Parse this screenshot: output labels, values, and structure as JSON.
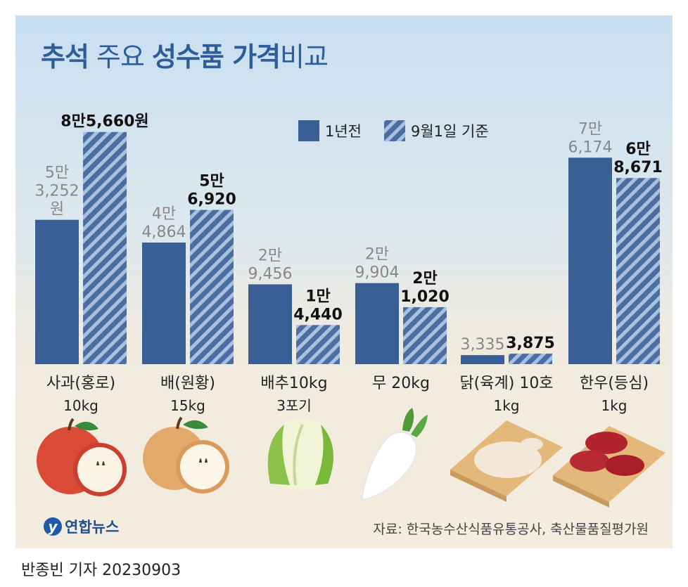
{
  "title": {
    "part1": "추석",
    "part2": " 주요 ",
    "part3": "성수품 가격",
    "part4": "비교"
  },
  "legend": {
    "prev": "1년전",
    "curr": "9월1일 기준"
  },
  "colors": {
    "prev": "#3a5f94",
    "stripe_light": "#a9c0df",
    "stripe_dark": "#4a6da2"
  },
  "chart_data": {
    "type": "bar",
    "categories": [
      "사과(홍로) 10kg",
      "배(원황) 15kg",
      "배추10kg 3포기",
      "무 20kg",
      "닭(육계) 10호 1kg",
      "한우(등심) 1kg"
    ],
    "series": [
      {
        "name": "1년전",
        "values": [
          53252,
          44864,
          29456,
          29904,
          3335,
          76174
        ]
      },
      {
        "name": "9월1일 기준",
        "values": [
          85660,
          56920,
          14440,
          21020,
          3875,
          68671
        ]
      }
    ],
    "ylim": [
      0,
      90000
    ],
    "items": [
      {
        "name": "사과(홍로)",
        "unit": "10kg",
        "prev_label": [
          "5만",
          "3,252",
          "원"
        ],
        "curr_label": [
          "8만5,660원"
        ]
      },
      {
        "name": "배(원황)",
        "unit": "15kg",
        "prev_label": [
          "4만",
          "4,864"
        ],
        "curr_label": [
          "5만",
          "6,920"
        ]
      },
      {
        "name": "배추10kg",
        "unit": "3포기",
        "prev_label": [
          "2만",
          "9,456"
        ],
        "curr_label": [
          "1만",
          "4,440"
        ]
      },
      {
        "name": "무 20kg",
        "unit": "",
        "prev_label": [
          "2만",
          "9,904"
        ],
        "curr_label": [
          "2만",
          "1,020"
        ]
      },
      {
        "name": "닭(육계) 10호",
        "unit": "1kg",
        "prev_label": [
          "3,335"
        ],
        "curr_label": [
          "3,875"
        ]
      },
      {
        "name": "한우(등심)",
        "unit": "1kg",
        "prev_label": [
          "7만",
          "6,174"
        ],
        "curr_label": [
          "6만",
          "8,671"
        ]
      }
    ]
  },
  "logo": {
    "mark": "y",
    "text": "연합뉴스"
  },
  "source": "자료: 한국농수산식품유통공사, 축산물품질평가원",
  "reporter": "반종빈 기자  20230903"
}
